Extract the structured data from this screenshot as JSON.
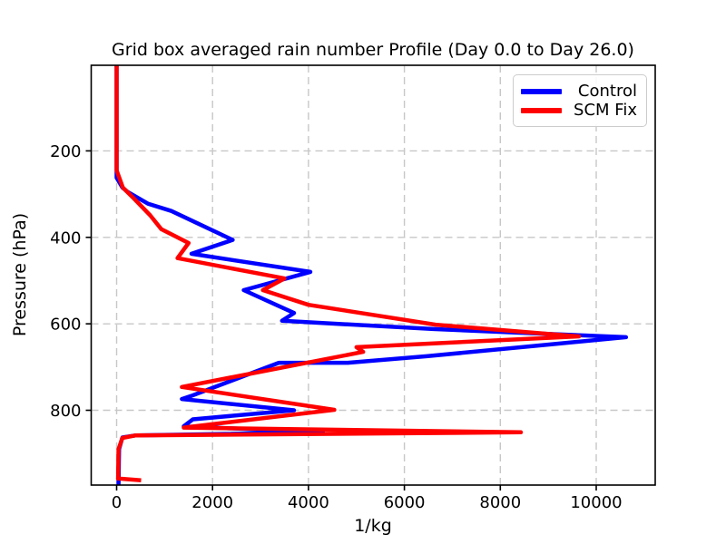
{
  "figure": {
    "background": "#ffffff",
    "frame_color": "#000000",
    "grid_color": "#c7c7c7"
  },
  "chart_data": {
    "type": "line",
    "title": "Grid box averaged rain number Profile (Day 0.0 to Day 26.0)",
    "xlabel": "1/kg",
    "ylabel": "Pressure (hPa)",
    "xlim": [
      -530,
      11230
    ],
    "ylim": [
      973,
      2
    ],
    "y_inverted": true,
    "grid": {
      "on": true,
      "style": "dashed"
    },
    "xticks": [
      0,
      2000,
      4000,
      6000,
      8000,
      10000
    ],
    "yticks": [
      200,
      400,
      600,
      800
    ],
    "legend": {
      "position": "upper right",
      "entries": [
        {
          "label": "Control",
          "color": "#0000ff"
        },
        {
          "label": "SCM Fix",
          "color": "#ff0000"
        }
      ]
    },
    "series": [
      {
        "name": "Control",
        "color": "#0000ff",
        "linewidth": 4.5,
        "points": [
          [
            0,
            2
          ],
          [
            0,
            262
          ],
          [
            120,
            285
          ],
          [
            230,
            295
          ],
          [
            650,
            322
          ],
          [
            1140,
            339
          ],
          [
            2420,
            406
          ],
          [
            1560,
            438
          ],
          [
            4040,
            480
          ],
          [
            2650,
            522
          ],
          [
            3700,
            575
          ],
          [
            3450,
            593
          ],
          [
            6600,
            612
          ],
          [
            10620,
            631
          ],
          [
            6465,
            675
          ],
          [
            4820,
            690
          ],
          [
            3384,
            690
          ],
          [
            1550,
            767
          ],
          [
            1360,
            774
          ],
          [
            3700,
            800
          ],
          [
            1590,
            821
          ],
          [
            1400,
            837
          ],
          [
            4300,
            851
          ],
          [
            400,
            858
          ],
          [
            120,
            863
          ],
          [
            50,
            890
          ],
          [
            40,
            972
          ]
        ]
      },
      {
        "name": "SCM Fix",
        "color": "#ff0000",
        "linewidth": 4.5,
        "points": [
          [
            0,
            2
          ],
          [
            0,
            245
          ],
          [
            130,
            285
          ],
          [
            360,
            310
          ],
          [
            700,
            349
          ],
          [
            930,
            381
          ],
          [
            1500,
            413
          ],
          [
            1270,
            448
          ],
          [
            3500,
            495
          ],
          [
            3050,
            522
          ],
          [
            4000,
            556
          ],
          [
            6650,
            602
          ],
          [
            9640,
            629
          ],
          [
            5000,
            654
          ],
          [
            5140,
            665
          ],
          [
            1360,
            746
          ],
          [
            4540,
            799
          ],
          [
            1400,
            840
          ],
          [
            8430,
            851
          ],
          [
            400,
            858
          ],
          [
            120,
            864
          ],
          [
            40,
            890
          ],
          [
            30,
            958
          ],
          [
            510,
            962
          ]
        ]
      }
    ]
  }
}
